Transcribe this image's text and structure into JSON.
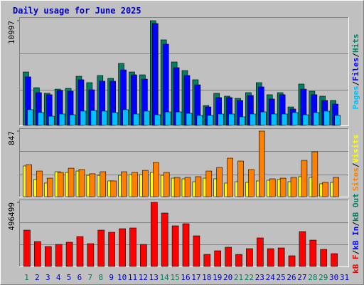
{
  "title": "Daily usage for June 2025",
  "legend_separator": "/",
  "chart_data": [
    {
      "type": "bar",
      "ylim": [
        0,
        10997
      ],
      "yticks": [
        10997
      ],
      "series": [
        {
          "name": "Hits",
          "color": "#008060",
          "values": [
            5610,
            3960,
            3370,
            3810,
            3890,
            5160,
            4490,
            5240,
            4940,
            6510,
            5610,
            5310,
            10997,
            8980,
            6660,
            5760,
            4790,
            2090,
            3370,
            3070,
            2840,
            3440,
            4490,
            3220,
            3440,
            1940,
            4340,
            3590,
            3070,
            2620,
            0
          ]
        },
        {
          "name": "Files",
          "color": "#0000ff",
          "values": [
            5090,
            3440,
            3220,
            3670,
            3590,
            4790,
            3740,
            4640,
            4640,
            5830,
            5310,
            4860,
            10700,
            8530,
            6060,
            5240,
            4260,
            1940,
            2920,
            2920,
            2620,
            3140,
            4040,
            2770,
            3220,
            1720,
            3810,
            3220,
            2620,
            2240,
            0
          ]
        },
        {
          "name": "Pages",
          "color": "#00c0ff",
          "values": [
            1650,
            1350,
            970,
            1200,
            1120,
            1500,
            1570,
            1500,
            1350,
            1650,
            1200,
            1500,
            1120,
            1420,
            1420,
            1270,
            1050,
            1050,
            1200,
            1200,
            900,
            1200,
            1420,
            1200,
            1200,
            1350,
            1120,
            1350,
            1500,
            1050,
            0
          ]
        }
      ]
    },
    {
      "type": "bar",
      "ylim": [
        0,
        847
      ],
      "yticks": [
        847
      ],
      "series": [
        {
          "name": "Visits",
          "color": "#ffff00",
          "values": [
            396,
            221,
            175,
            322,
            313,
            331,
            276,
            276,
            203,
            276,
            285,
            285,
            313,
            276,
            239,
            230,
            193,
            239,
            230,
            175,
            193,
            184,
            203,
            212,
            221,
            193,
            258,
            249,
            166,
            184,
            0
          ]
        },
        {
          "name": "Sites",
          "color": "#ff8000",
          "values": [
            414,
            331,
            239,
            313,
            368,
            350,
            295,
            322,
            203,
            322,
            313,
            340,
            442,
            313,
            249,
            249,
            258,
            331,
            377,
            497,
            460,
            350,
            847,
            230,
            239,
            249,
            469,
            580,
            184,
            249,
            0
          ]
        }
      ]
    },
    {
      "type": "bar",
      "ylim": [
        0,
        496499
      ],
      "yticks": [
        496499
      ],
      "categories": [
        "1",
        "2",
        "3",
        "4",
        "5",
        "6",
        "7",
        "8",
        "9",
        "10",
        "11",
        "12",
        "13",
        "14",
        "15",
        "16",
        "17",
        "18",
        "19",
        "20",
        "21",
        "22",
        "23",
        "24",
        "25",
        "26",
        "27",
        "28",
        "29",
        "30",
        "31"
      ],
      "category_colors": [
        "#008060",
        "#0000c0",
        "#0000c0",
        "#0000c0",
        "#0000c0",
        "#0000c0",
        "#008060",
        "#008060",
        "#0000c0",
        "#0000c0",
        "#0000c0",
        "#0000c0",
        "#0000c0",
        "#008060",
        "#008060",
        "#0000c0",
        "#0000c0",
        "#0000c0",
        "#0000c0",
        "#0000c0",
        "#008060",
        "#008060",
        "#0000c0",
        "#0000c0",
        "#0000c0",
        "#0000c0",
        "#0000c0",
        "#008060",
        "#008060",
        "#0000c0",
        "#0000c0"
      ],
      "series": [
        {
          "name": "kB F",
          "color": "#ff0000",
          "values": [
            281400,
            193100,
            154500,
            171000,
            187600,
            231700,
            176600,
            281400,
            264800,
            292400,
            297900,
            171000,
            496499,
            413800,
            314500,
            331000,
            237200,
            93800,
            121400,
            149000,
            93800,
            137900,
            220700,
            137900,
            143400,
            82800,
            270300,
            204100,
            132400,
            99300,
            0
          ]
        }
      ],
      "legend_items": [
        {
          "name": "kB In",
          "color": "#0000ff"
        },
        {
          "name": "kB Out",
          "color": "#008060"
        }
      ]
    }
  ]
}
